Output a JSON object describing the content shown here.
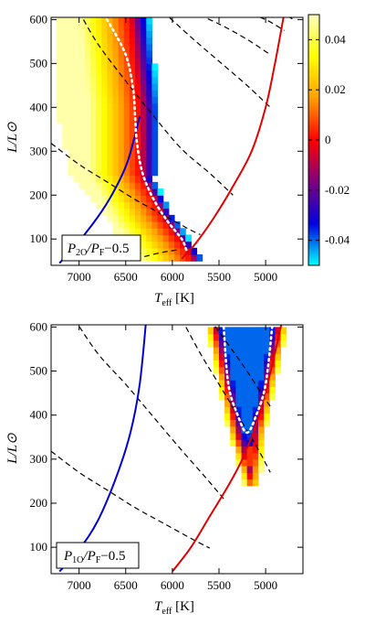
{
  "colorbar": {
    "ticks": [
      {
        "v": 0.04,
        "label": "0.04"
      },
      {
        "v": 0.02,
        "label": "0.02"
      },
      {
        "v": 0.0,
        "label": "0"
      },
      {
        "v": -0.02,
        "label": "-0.02"
      },
      {
        "v": -0.04,
        "label": "-0.04"
      }
    ],
    "range": [
      -0.05,
      0.05
    ],
    "stops": [
      "#00ffff",
      "#0000e0",
      "#800080",
      "#ff0000",
      "#ffa000",
      "#ffff00",
      "#ffffc0"
    ]
  },
  "colors": {
    "blue_edge": "#0000d0",
    "red_edge": "#e00000",
    "isoline": "#000000",
    "zero_contour": "#ffffff"
  },
  "chart_data": [
    {
      "type": "heatmap",
      "name": "top",
      "label_main": "P",
      "label_sub1": "2O",
      "label_mid": "/P",
      "label_sub2": "F",
      "label_tail": "−0.5",
      "xlabel_main": "T",
      "xlabel_sub": "eff",
      "xlabel_unit": " [K]",
      "ylabel": "L/L⊙",
      "xlim": [
        7300,
        4600
      ],
      "ylim": [
        40,
        605
      ],
      "x_reversed": true,
      "xticks": [
        {
          "v": 7000,
          "label": "7000"
        },
        {
          "v": 6500,
          "label": "6500"
        },
        {
          "v": 6000,
          "label": "6000"
        },
        {
          "v": 5500,
          "label": "5500"
        },
        {
          "v": 5000,
          "label": "5000"
        }
      ],
      "yticks": [
        {
          "v": 100,
          "label": "100"
        },
        {
          "v": 200,
          "label": "200"
        },
        {
          "v": 300,
          "label": "300"
        },
        {
          "v": 400,
          "label": "400"
        },
        {
          "v": 500,
          "label": "500"
        },
        {
          "v": 600,
          "label": "600"
        }
      ],
      "blue_edge": [
        [
          7210,
          45
        ],
        [
          7000,
          95
        ],
        [
          6800,
          150
        ],
        [
          6650,
          200
        ],
        [
          6500,
          265
        ],
        [
          6420,
          320
        ],
        [
          6350,
          380
        ]
      ],
      "red_edge": [
        [
          5900,
          55
        ],
        [
          5750,
          90
        ],
        [
          5550,
          150
        ],
        [
          5350,
          220
        ],
        [
          5150,
          300
        ],
        [
          5000,
          400
        ],
        [
          4900,
          500
        ],
        [
          4800,
          615
        ]
      ],
      "isolines": [
        [
          [
            7300,
            318
          ],
          [
            7000,
            270
          ],
          [
            6700,
            230
          ],
          [
            6400,
            190
          ],
          [
            6100,
            155
          ],
          [
            5800,
            120
          ],
          [
            5700,
            110
          ]
        ],
        [
          [
            7000,
            618
          ],
          [
            6800,
            545
          ],
          [
            6500,
            460
          ],
          [
            6200,
            380
          ],
          [
            5900,
            305
          ],
          [
            5600,
            250
          ],
          [
            5350,
            200
          ]
        ],
        [
          [
            6100,
            618
          ],
          [
            5800,
            560
          ],
          [
            5500,
            505
          ],
          [
            5200,
            450
          ],
          [
            4950,
            400
          ]
        ],
        [
          [
            5800,
            618
          ],
          [
            5500,
            590
          ],
          [
            5200,
            555
          ],
          [
            4950,
            520
          ]
        ],
        [
          [
            5250,
            618
          ],
          [
            5000,
            600
          ],
          [
            4800,
            575
          ]
        ],
        [
          [
            4850,
            618
          ],
          [
            4700,
            600
          ]
        ],
        [
          [
            6300,
            60
          ],
          [
            6100,
            70
          ],
          [
            5950,
            75
          ]
        ]
      ],
      "zero_contour": [
        [
          6700,
          600
        ],
        [
          6500,
          520
        ],
        [
          6420,
          440
        ],
        [
          6400,
          380
        ],
        [
          6380,
          320
        ],
        [
          6320,
          250
        ],
        [
          6200,
          190
        ],
        [
          6050,
          140
        ],
        [
          5900,
          100
        ],
        [
          5850,
          75
        ]
      ],
      "field": {
        "zero_center": [
          [
            600,
            6450
          ],
          [
            400,
            6350
          ],
          [
            250,
            6350
          ],
          [
            150,
            6100
          ],
          [
            60,
            5800
          ]
        ],
        "left_width": 550,
        "right_width": 210,
        "right_cut": 250,
        "ymin": 50,
        "ymax": 600,
        "bottom_left": [
          [
            50,
            6500
          ],
          [
            150,
            6700
          ],
          [
            250,
            7100
          ],
          [
            400,
            7250
          ],
          [
            600,
            7250
          ]
        ]
      }
    },
    {
      "type": "heatmap",
      "name": "bottom",
      "label_main": "P",
      "label_sub1": "1O",
      "label_mid": "/P",
      "label_sub2": "F",
      "label_tail": "−0.5",
      "xlabel_main": "T",
      "xlabel_sub": "eff",
      "xlabel_unit": " [K]",
      "ylabel": "L/L⊙",
      "xlim": [
        7300,
        4600
      ],
      "ylim": [
        40,
        605
      ],
      "x_reversed": true,
      "xticks": [
        {
          "v": 7000,
          "label": "7000"
        },
        {
          "v": 6500,
          "label": "6500"
        },
        {
          "v": 6000,
          "label": "6000"
        },
        {
          "v": 5500,
          "label": "5500"
        },
        {
          "v": 5000,
          "label": "5000"
        }
      ],
      "yticks": [
        {
          "v": 100,
          "label": "100"
        },
        {
          "v": 200,
          "label": "200"
        },
        {
          "v": 300,
          "label": "300"
        },
        {
          "v": 400,
          "label": "400"
        },
        {
          "v": 500,
          "label": "500"
        },
        {
          "v": 600,
          "label": "600"
        }
      ],
      "blue_edge": [
        [
          7210,
          45
        ],
        [
          7000,
          95
        ],
        [
          6800,
          160
        ],
        [
          6600,
          260
        ],
        [
          6450,
          360
        ],
        [
          6350,
          470
        ],
        [
          6280,
          618
        ]
      ],
      "red_edge": [
        [
          6000,
          45
        ],
        [
          5800,
          100
        ],
        [
          5600,
          170
        ],
        [
          5400,
          240
        ],
        [
          5250,
          300
        ],
        [
          5100,
          380
        ],
        [
          4980,
          470
        ],
        [
          4880,
          560
        ],
        [
          4820,
          618
        ]
      ],
      "isolines": [
        [
          [
            7300,
            318
          ],
          [
            7000,
            270
          ],
          [
            6700,
            230
          ],
          [
            6400,
            190
          ],
          [
            6100,
            155
          ],
          [
            5800,
            120
          ],
          [
            5600,
            98
          ]
        ],
        [
          [
            7050,
            618
          ],
          [
            6800,
            540
          ],
          [
            6500,
            470
          ],
          [
            6200,
            395
          ],
          [
            5900,
            320
          ],
          [
            5650,
            260
          ],
          [
            5450,
            210
          ]
        ],
        [
          [
            5900,
            618
          ],
          [
            5700,
            540
          ],
          [
            5500,
            470
          ],
          [
            5300,
            400
          ],
          [
            5100,
            330
          ],
          [
            4950,
            270
          ]
        ],
        [
          [
            5600,
            618
          ],
          [
            5400,
            560
          ],
          [
            5200,
            500
          ],
          [
            5050,
            450
          ],
          [
            4950,
            420
          ]
        ]
      ],
      "zero_contour": [
        [
          5450,
          600
        ],
        [
          5400,
          470
        ],
        [
          5300,
          400
        ],
        [
          5200,
          360
        ],
        [
          5100,
          400
        ],
        [
          5000,
          470
        ],
        [
          4930,
          600
        ]
      ],
      "field": {
        "v_center": [
          [
            610,
            5200
          ],
          [
            360,
            5200
          ],
          [
            240,
            5150
          ]
        ],
        "ymin": 240,
        "ymax": 605
      }
    }
  ]
}
